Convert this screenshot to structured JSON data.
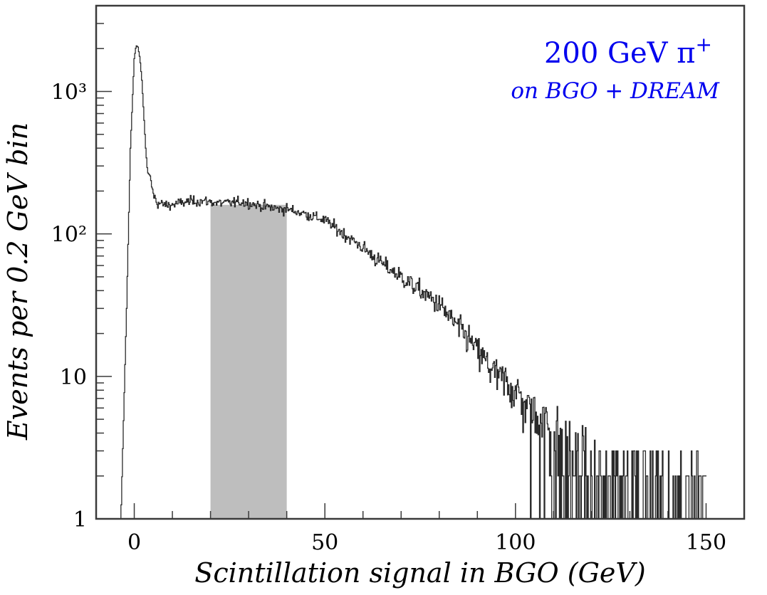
{
  "chart_data": {
    "type": "line",
    "title": "",
    "xlabel": "Scintillation signal in BGO (GeV)",
    "ylabel": "Events per 0.2 GeV bin",
    "xlim": [
      -10,
      160
    ],
    "ylim": [
      1,
      4000
    ],
    "y_scale": "log",
    "grid": false,
    "x_ticks": [
      0,
      50,
      100,
      150
    ],
    "x_tick_labels": [
      "0",
      "50",
      "100",
      "150"
    ],
    "y_ticks": [
      1,
      10,
      100,
      1000
    ],
    "y_tick_labels": [
      "1",
      "10",
      "10²",
      "10³"
    ],
    "annotation": {
      "main_text": "200 GeV π",
      "main_superscript": "+",
      "sub_text": "on BGO + DREAM",
      "color": "#0000ee"
    },
    "highlight_band": {
      "x_start": 20,
      "x_end": 40,
      "color": "#bebebe"
    },
    "line_color": "#2a2a2a",
    "series": [
      {
        "x": [
          -3.5,
          -2,
          -1,
          0,
          0.5,
          1,
          1.5,
          2,
          2.5,
          3,
          3.5,
          4,
          5,
          6,
          8,
          10,
          12,
          15,
          18,
          20,
          22,
          25,
          28,
          30,
          32,
          35,
          38,
          40,
          45,
          50,
          55,
          60,
          65,
          70,
          75,
          80,
          85,
          88,
          90,
          93,
          95,
          98,
          100,
          103,
          105,
          108,
          110,
          113,
          115,
          118,
          120,
          125,
          130,
          135,
          138,
          140,
          145,
          150
        ],
        "values": [
          1,
          30,
          400,
          1700,
          2100,
          2050,
          1700,
          1200,
          700,
          400,
          270,
          260,
          190,
          165,
          160,
          160,
          165,
          170,
          170,
          168,
          165,
          165,
          168,
          165,
          160,
          155,
          150,
          150,
          138,
          125,
          100,
          80,
          62,
          50,
          40,
          32,
          22,
          18,
          15,
          12,
          10,
          9,
          8,
          6,
          5.5,
          4.5,
          4,
          3,
          3,
          2.5,
          2,
          1.5,
          1.5,
          1.2,
          1.5,
          1.2,
          1.2,
          1.2
        ]
      }
    ]
  }
}
